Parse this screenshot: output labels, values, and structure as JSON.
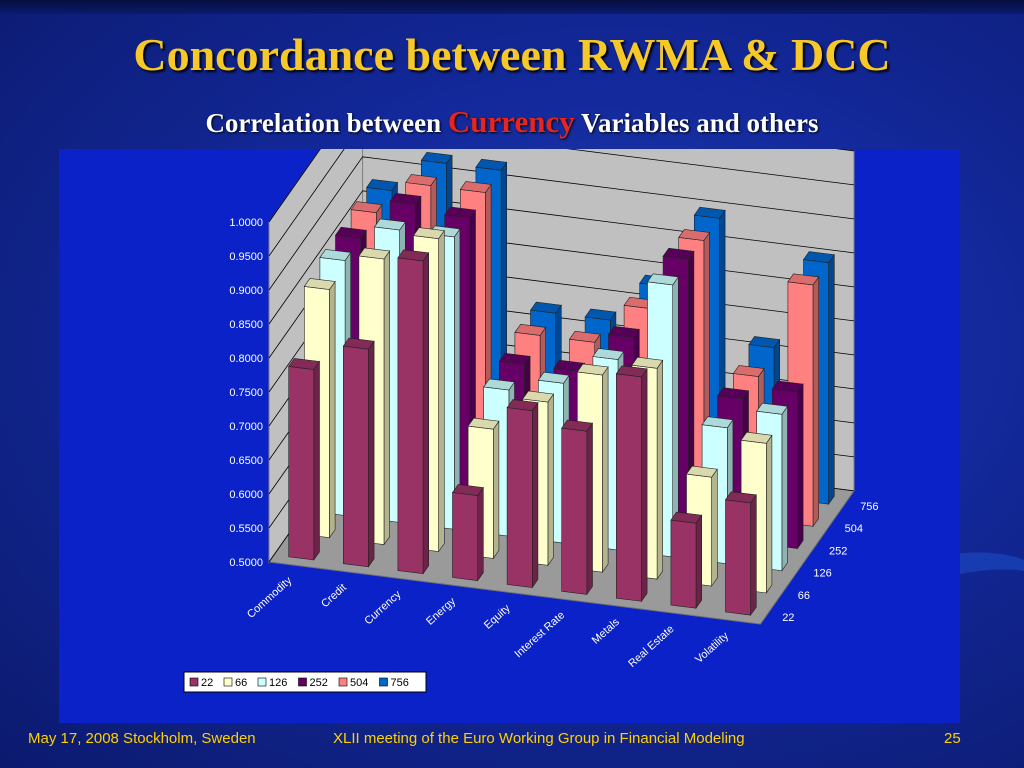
{
  "slide": {
    "title": "Concordance between RWMA & DCC",
    "subtitle_pre": "Correlation between ",
    "subtitle_highlight": "Currency",
    "subtitle_post": " Variables and others",
    "footer_left": "May 17, 2008 Stockholm, Sweden",
    "footer_center": "XLII meeting of the Euro Working Group in Financial Modeling",
    "page_number": "25",
    "colors": {
      "title": "#f6c928",
      "highlight": "#e8241f",
      "footer": "#ffd000",
      "chart_area": "#0a22c8"
    }
  },
  "chart_data": {
    "type": "bar",
    "categories": [
      "Commodity",
      "Credit",
      "Currency",
      "Energy",
      "Equity",
      "Interest Rate",
      "Metals",
      "Real Estate",
      "Volatility"
    ],
    "series": [
      {
        "name": "22",
        "color": "#993366",
        "values": [
          0.78,
          0.82,
          0.96,
          0.625,
          0.76,
          0.74,
          0.83,
          0.625,
          0.665
        ]
      },
      {
        "name": "66",
        "color": "#ffffcc",
        "values": [
          0.865,
          0.92,
          0.96,
          0.69,
          0.74,
          0.79,
          0.81,
          0.66,
          0.72
        ]
      },
      {
        "name": "126",
        "color": "#ccffff",
        "values": [
          0.875,
          0.93,
          0.93,
          0.715,
          0.735,
          0.78,
          0.9,
          0.7,
          0.73
        ]
      },
      {
        "name": "252",
        "color": "#660066",
        "values": [
          0.875,
          0.935,
          0.925,
          0.72,
          0.72,
          0.78,
          0.905,
          0.71,
          0.73
        ]
      },
      {
        "name": "504",
        "color": "#ff8080",
        "values": [
          0.88,
          0.93,
          0.93,
          0.73,
          0.73,
          0.79,
          0.9,
          0.71,
          0.855
        ]
      },
      {
        "name": "756",
        "color": "#0066cc",
        "values": [
          0.88,
          0.93,
          0.93,
          0.73,
          0.73,
          0.79,
          0.9,
          0.72,
          0.855
        ]
      }
    ],
    "y_tick_labels": [
      "0.5000",
      "0.5500",
      "0.6000",
      "0.6500",
      "0.7000",
      "0.7500",
      "0.8000",
      "0.8500",
      "0.9000",
      "0.9500",
      "1.0000"
    ],
    "ylim": [
      0.5,
      1.0
    ],
    "depth_axis_labels": [
      "22",
      "66",
      "126",
      "252",
      "504",
      "756"
    ],
    "legend_position": "bottom-left",
    "grid": true,
    "style": "3d-column"
  }
}
